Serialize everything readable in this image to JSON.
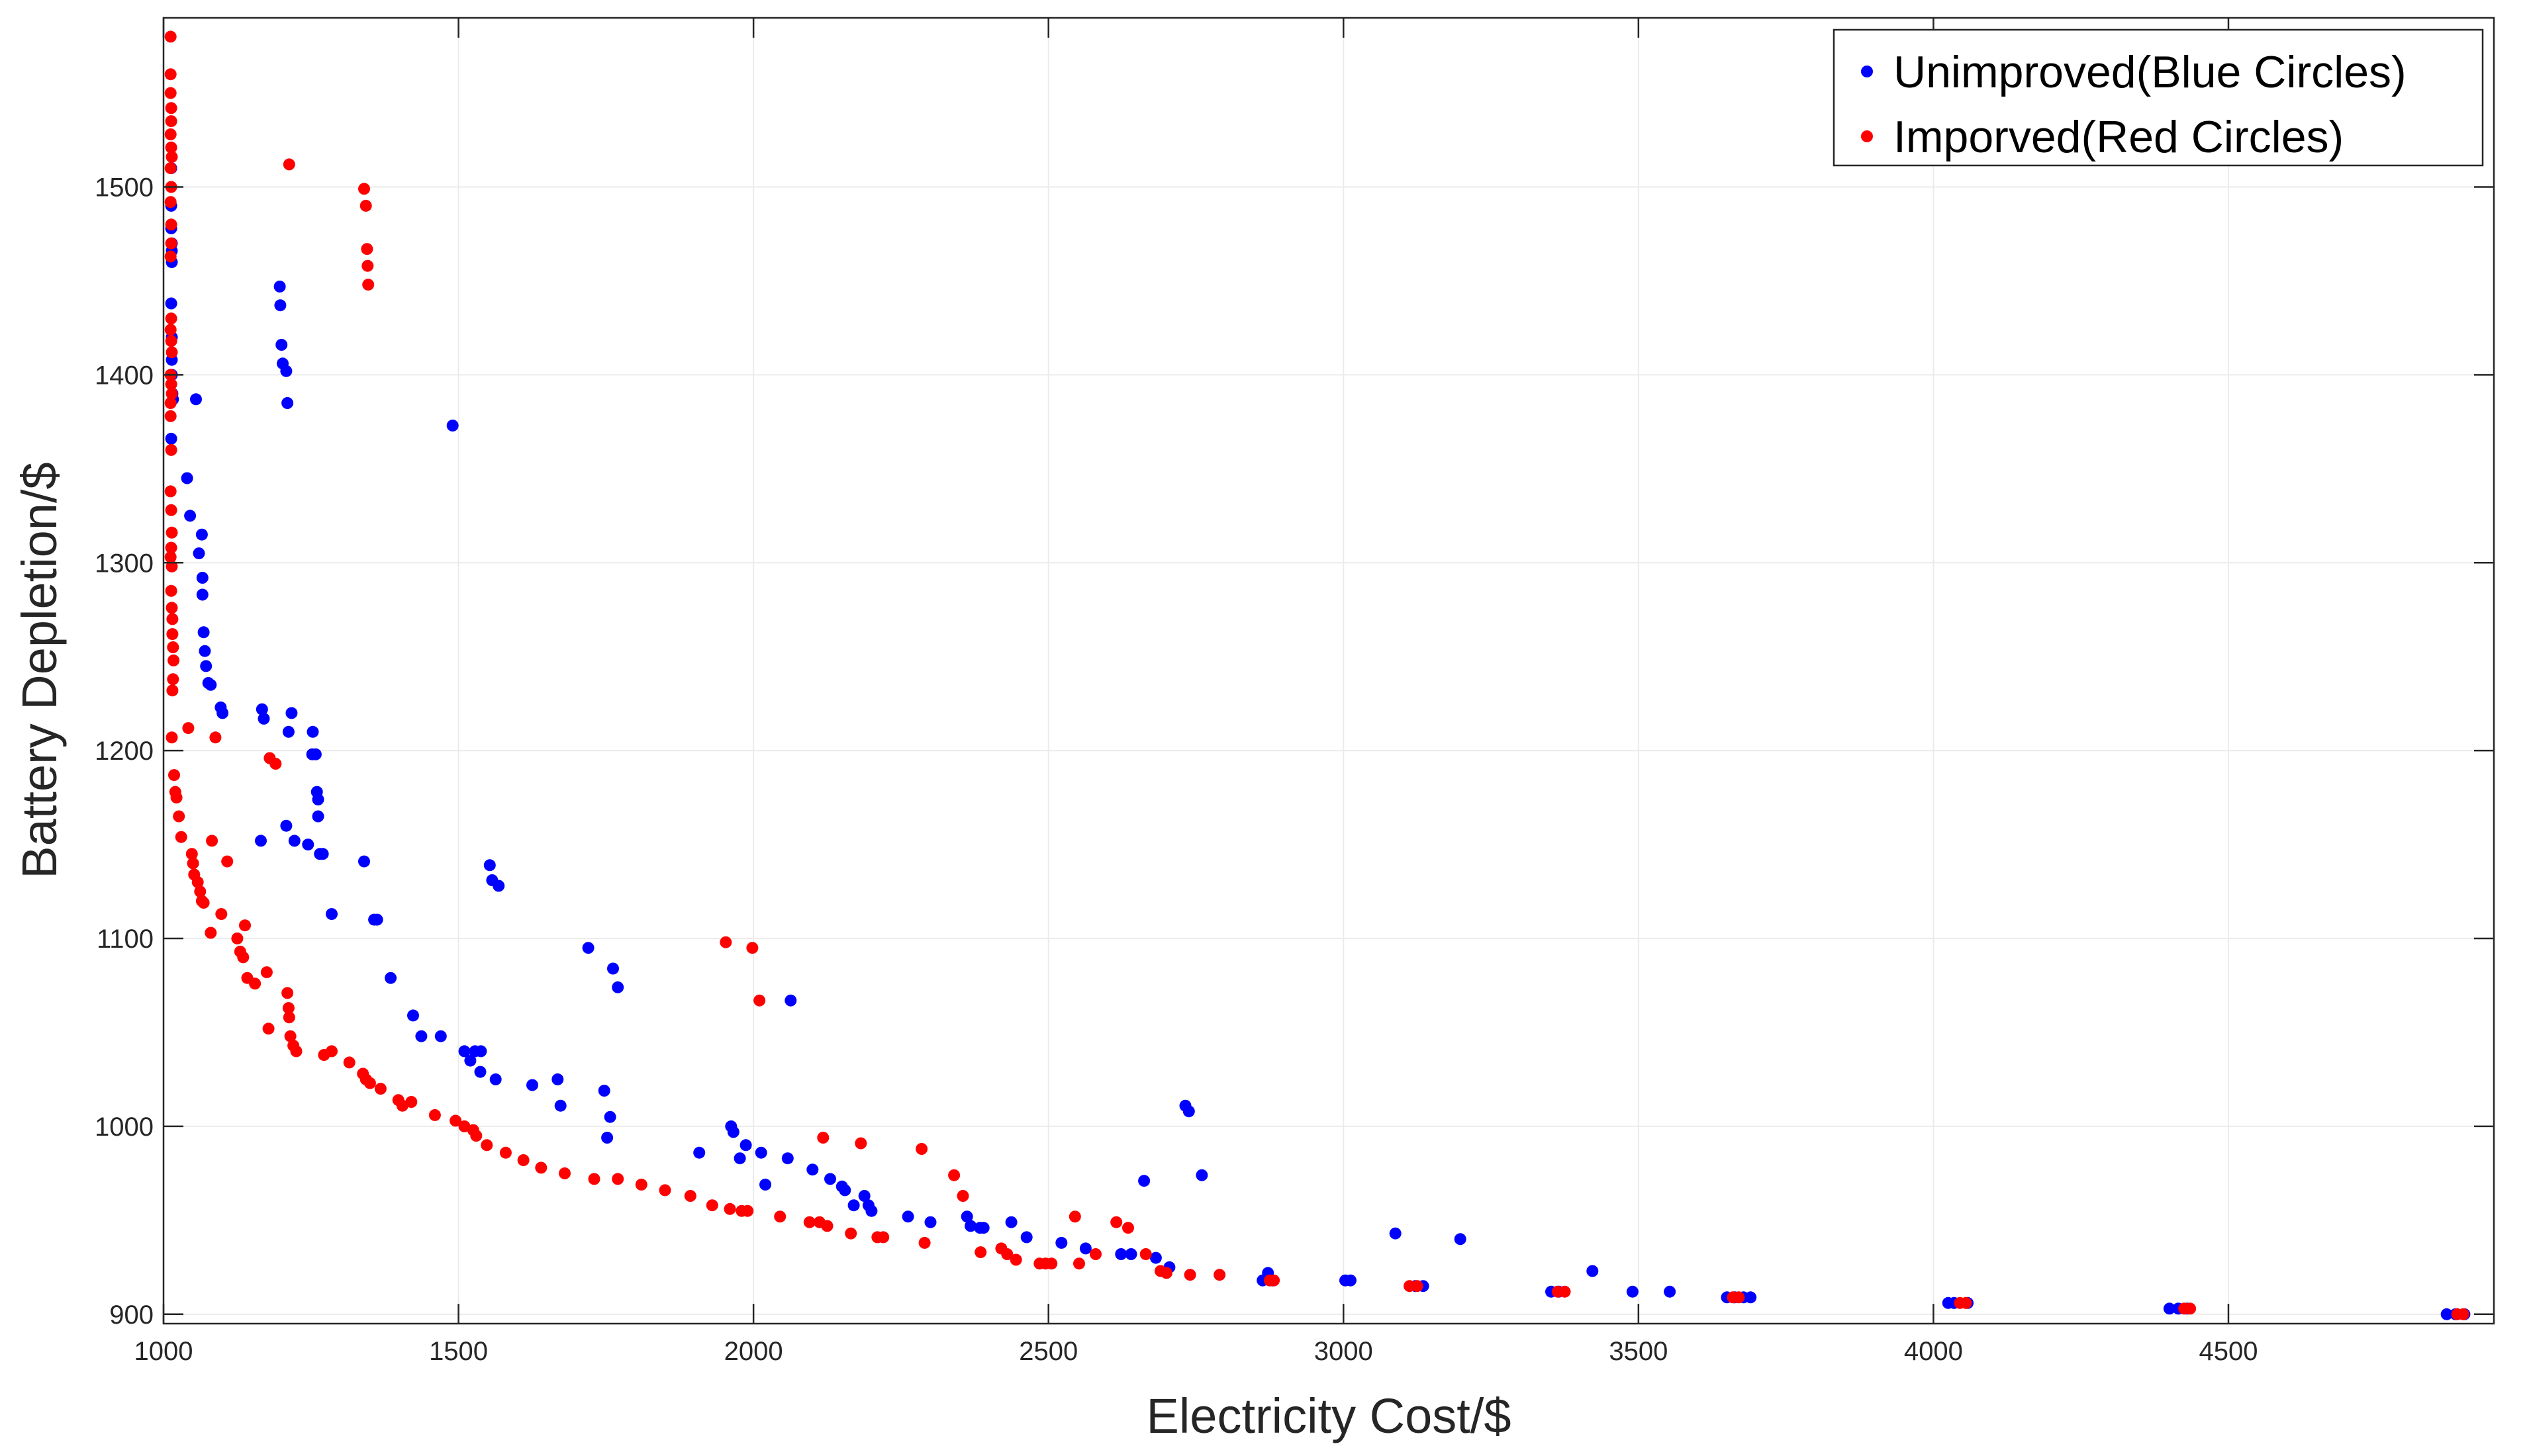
{
  "chart_data": {
    "type": "scatter",
    "title": "",
    "xlabel": "Electricity Cost/$",
    "ylabel": "Battery Depletion/$",
    "xlim": [
      1000,
      4950
    ],
    "ylim": [
      895,
      1590
    ],
    "xticks": [
      1000,
      1500,
      2000,
      2500,
      3000,
      3500,
      4000,
      4500
    ],
    "yticks": [
      900,
      1000,
      1100,
      1200,
      1300,
      1400,
      1500
    ],
    "grid": true,
    "legend_position": "top-right",
    "series": [
      {
        "name": "Unimproved(Blue Circles)",
        "color": "#0000ff",
        "points": [
          [
            1013,
            1510
          ],
          [
            1013,
            1490
          ],
          [
            1013,
            1478
          ],
          [
            1014,
            1470
          ],
          [
            1014,
            1466
          ],
          [
            1014,
            1460
          ],
          [
            1013,
            1438
          ],
          [
            1014,
            1420
          ],
          [
            1014,
            1408
          ],
          [
            1014,
            1400
          ],
          [
            1015,
            1390
          ],
          [
            1016,
            1387
          ],
          [
            1013,
            1366
          ],
          [
            1055,
            1387
          ],
          [
            1040,
            1345
          ],
          [
            1045,
            1325
          ],
          [
            1065,
            1315
          ],
          [
            1060,
            1305
          ],
          [
            1066,
            1292
          ],
          [
            1066,
            1283
          ],
          [
            1068,
            1263
          ],
          [
            1070,
            1253
          ],
          [
            1072,
            1245
          ],
          [
            1076,
            1236
          ],
          [
            1080,
            1235
          ],
          [
            1097,
            1223
          ],
          [
            1100,
            1220
          ],
          [
            1167,
            1222
          ],
          [
            1170,
            1217
          ],
          [
            1197,
            1447
          ],
          [
            1198,
            1437
          ],
          [
            1200,
            1416
          ],
          [
            1202,
            1406
          ],
          [
            1208,
            1402
          ],
          [
            1210,
            1385
          ],
          [
            1217,
            1220
          ],
          [
            1212,
            1210
          ],
          [
            1253,
            1210
          ],
          [
            1252,
            1198
          ],
          [
            1258,
            1198
          ],
          [
            1260,
            1178
          ],
          [
            1262,
            1174
          ],
          [
            1262,
            1165
          ],
          [
            1265,
            1145
          ],
          [
            1270,
            1145
          ],
          [
            1208,
            1160
          ],
          [
            1222,
            1152
          ],
          [
            1245,
            1150
          ],
          [
            1165,
            1152
          ],
          [
            1340,
            1141
          ],
          [
            1285,
            1113
          ],
          [
            1357,
            1110
          ],
          [
            1362,
            1110
          ],
          [
            1385,
            1079
          ],
          [
            1423,
            1059
          ],
          [
            1437,
            1048
          ],
          [
            1470,
            1048
          ],
          [
            1510,
            1040
          ],
          [
            1520,
            1035
          ],
          [
            1528,
            1040
          ],
          [
            1538,
            1040
          ],
          [
            1537,
            1029
          ],
          [
            1563,
            1025
          ],
          [
            1625,
            1022
          ],
          [
            1668,
            1025
          ],
          [
            1673,
            1011
          ],
          [
            1490,
            1373
          ],
          [
            1553,
            1139
          ],
          [
            1557,
            1131
          ],
          [
            1568,
            1128
          ],
          [
            1720,
            1095
          ],
          [
            1762,
            1084
          ],
          [
            1770,
            1074
          ],
          [
            1747,
            1019
          ],
          [
            1757,
            1005
          ],
          [
            1752,
            994
          ],
          [
            1908,
            986
          ],
          [
            1962,
            1000
          ],
          [
            1966,
            997
          ],
          [
            1987,
            990
          ],
          [
            1977,
            983
          ],
          [
            2013,
            986
          ],
          [
            2020,
            969
          ],
          [
            2058,
            983
          ],
          [
            2063,
            1067
          ],
          [
            2100,
            977
          ],
          [
            2130,
            972
          ],
          [
            2150,
            968
          ],
          [
            2155,
            966
          ],
          [
            2170,
            958
          ],
          [
            2188,
            963
          ],
          [
            2195,
            958
          ],
          [
            2200,
            955
          ],
          [
            2262,
            952
          ],
          [
            2300,
            949
          ],
          [
            2362,
            952
          ],
          [
            2368,
            947
          ],
          [
            2384,
            946
          ],
          [
            2390,
            946
          ],
          [
            2437,
            949
          ],
          [
            2463,
            941
          ],
          [
            2522,
            938
          ],
          [
            2563,
            935
          ],
          [
            2623,
            932
          ],
          [
            2640,
            932
          ],
          [
            2662,
            971
          ],
          [
            2682,
            930
          ],
          [
            2705,
            925
          ],
          [
            2732,
            1011
          ],
          [
            2738,
            1008
          ],
          [
            2760,
            974
          ],
          [
            2863,
            918
          ],
          [
            2872,
            922
          ],
          [
            2880,
            918
          ],
          [
            3003,
            918
          ],
          [
            3012,
            918
          ],
          [
            3088,
            943
          ],
          [
            3122,
            915
          ],
          [
            3135,
            915
          ],
          [
            3198,
            940
          ],
          [
            3352,
            912
          ],
          [
            3365,
            912
          ],
          [
            3422,
            923
          ],
          [
            3490,
            912
          ],
          [
            3553,
            912
          ],
          [
            3650,
            909
          ],
          [
            3663,
            909
          ],
          [
            3678,
            909
          ],
          [
            3690,
            909
          ],
          [
            4025,
            906
          ],
          [
            4035,
            906
          ],
          [
            4058,
            906
          ],
          [
            4400,
            903
          ],
          [
            4415,
            903
          ],
          [
            4430,
            903
          ],
          [
            4870,
            900
          ],
          [
            4885,
            900
          ],
          [
            4900,
            900
          ]
        ]
      },
      {
        "name": "Imporved(Red Circles)",
        "color": "#ff0000",
        "points": [
          [
            1012,
            1580
          ],
          [
            1012,
            1560
          ],
          [
            1012,
            1550
          ],
          [
            1013,
            1542
          ],
          [
            1013,
            1535
          ],
          [
            1012,
            1528
          ],
          [
            1013,
            1521
          ],
          [
            1014,
            1516
          ],
          [
            1012,
            1510
          ],
          [
            1013,
            1500
          ],
          [
            1012,
            1492
          ],
          [
            1013,
            1480
          ],
          [
            1013,
            1470
          ],
          [
            1012,
            1463
          ],
          [
            1013,
            1430
          ],
          [
            1012,
            1424
          ],
          [
            1013,
            1418
          ],
          [
            1014,
            1412
          ],
          [
            1012,
            1400
          ],
          [
            1013,
            1395
          ],
          [
            1014,
            1390
          ],
          [
            1012,
            1385
          ],
          [
            1012,
            1378
          ],
          [
            1013,
            1360
          ],
          [
            1012,
            1338
          ],
          [
            1013,
            1328
          ],
          [
            1014,
            1316
          ],
          [
            1013,
            1308
          ],
          [
            1012,
            1303
          ],
          [
            1014,
            1298
          ],
          [
            1013,
            1285
          ],
          [
            1014,
            1276
          ],
          [
            1015,
            1270
          ],
          [
            1015,
            1262
          ],
          [
            1016,
            1255
          ],
          [
            1017,
            1248
          ],
          [
            1016,
            1238
          ],
          [
            1015,
            1232
          ],
          [
            1014,
            1207
          ],
          [
            1018,
            1187
          ],
          [
            1020,
            1178
          ],
          [
            1022,
            1175
          ],
          [
            1026,
            1165
          ],
          [
            1030,
            1154
          ],
          [
            1042,
            1212
          ],
          [
            1048,
            1145
          ],
          [
            1050,
            1140
          ],
          [
            1052,
            1134
          ],
          [
            1058,
            1130
          ],
          [
            1062,
            1125
          ],
          [
            1065,
            1120
          ],
          [
            1068,
            1119
          ],
          [
            1082,
            1152
          ],
          [
            1088,
            1207
          ],
          [
            1080,
            1103
          ],
          [
            1098,
            1113
          ],
          [
            1108,
            1141
          ],
          [
            1125,
            1100
          ],
          [
            1130,
            1093
          ],
          [
            1135,
            1090
          ],
          [
            1138,
            1107
          ],
          [
            1142,
            1079
          ],
          [
            1155,
            1076
          ],
          [
            1175,
            1082
          ],
          [
            1178,
            1052
          ],
          [
            1180,
            1196
          ],
          [
            1190,
            1193
          ],
          [
            1213,
            1512
          ],
          [
            1210,
            1071
          ],
          [
            1212,
            1063
          ],
          [
            1213,
            1058
          ],
          [
            1215,
            1048
          ],
          [
            1220,
            1043
          ],
          [
            1225,
            1040
          ],
          [
            1272,
            1038
          ],
          [
            1285,
            1040
          ],
          [
            1315,
            1034
          ],
          [
            1338,
            1028
          ],
          [
            1343,
            1025
          ],
          [
            1350,
            1023
          ],
          [
            1340,
            1499
          ],
          [
            1343,
            1490
          ],
          [
            1345,
            1467
          ],
          [
            1346,
            1458
          ],
          [
            1347,
            1448
          ],
          [
            1368,
            1020
          ],
          [
            1398,
            1014
          ],
          [
            1405,
            1011
          ],
          [
            1420,
            1013
          ],
          [
            1460,
            1006
          ],
          [
            1495,
            1003
          ],
          [
            1510,
            1000
          ],
          [
            1525,
            998
          ],
          [
            1530,
            995
          ],
          [
            1548,
            990
          ],
          [
            1580,
            986
          ],
          [
            1610,
            982
          ],
          [
            1640,
            978
          ],
          [
            1680,
            975
          ],
          [
            1730,
            972
          ],
          [
            1770,
            972
          ],
          [
            1810,
            969
          ],
          [
            1850,
            966
          ],
          [
            1893,
            963
          ],
          [
            1930,
            958
          ],
          [
            1960,
            956
          ],
          [
            1980,
            955
          ],
          [
            1990,
            955
          ],
          [
            1953,
            1098
          ],
          [
            1998,
            1095
          ],
          [
            2010,
            1067
          ],
          [
            2045,
            952
          ],
          [
            2095,
            949
          ],
          [
            2112,
            949
          ],
          [
            2118,
            994
          ],
          [
            2125,
            947
          ],
          [
            2165,
            943
          ],
          [
            2182,
            991
          ],
          [
            2210,
            941
          ],
          [
            2220,
            941
          ],
          [
            2285,
            988
          ],
          [
            2290,
            938
          ],
          [
            2340,
            974
          ],
          [
            2355,
            963
          ],
          [
            2385,
            933
          ],
          [
            2420,
            935
          ],
          [
            2430,
            932
          ],
          [
            2445,
            929
          ],
          [
            2485,
            927
          ],
          [
            2495,
            927
          ],
          [
            2505,
            927
          ],
          [
            2545,
            952
          ],
          [
            2552,
            927
          ],
          [
            2580,
            932
          ],
          [
            2615,
            949
          ],
          [
            2635,
            946
          ],
          [
            2665,
            932
          ],
          [
            2690,
            923
          ],
          [
            2700,
            922
          ],
          [
            2740,
            921
          ],
          [
            2790,
            921
          ],
          [
            2875,
            918
          ],
          [
            2882,
            918
          ],
          [
            3112,
            915
          ],
          [
            3125,
            915
          ],
          [
            3363,
            912
          ],
          [
            3375,
            912
          ],
          [
            3660,
            909
          ],
          [
            3670,
            909
          ],
          [
            4045,
            906
          ],
          [
            4055,
            906
          ],
          [
            4425,
            903
          ],
          [
            4435,
            903
          ],
          [
            4888,
            900
          ],
          [
            4898,
            900
          ]
        ]
      }
    ]
  }
}
